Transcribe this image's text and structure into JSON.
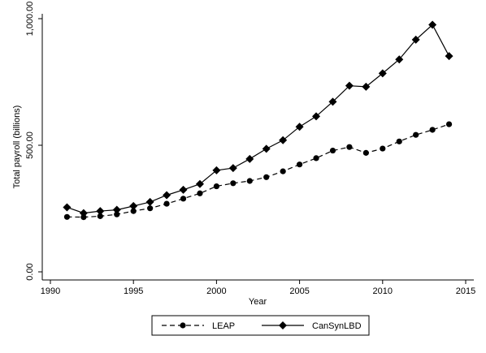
{
  "chart_data": {
    "type": "line",
    "title": "",
    "xlabel": "Year",
    "ylabel": "Total payroll (billions)",
    "xlim": [
      1990,
      2015
    ],
    "ylim": [
      0,
      1000
    ],
    "xticks": [
      {
        "value": 1990,
        "label": "1990"
      },
      {
        "value": 1995,
        "label": "1995"
      },
      {
        "value": 2000,
        "label": "2000"
      },
      {
        "value": 2005,
        "label": "2005"
      },
      {
        "value": 2010,
        "label": "2010"
      },
      {
        "value": 2015,
        "label": "2015"
      }
    ],
    "yticks": [
      {
        "value": 0,
        "label": "0.00"
      },
      {
        "value": 500,
        "label": "500.00"
      },
      {
        "value": 1000,
        "label": "1,000.00"
      }
    ],
    "grid": false,
    "legend_position": "bottom",
    "x": [
      1991,
      1992,
      1993,
      1994,
      1995,
      1996,
      1997,
      1998,
      1999,
      2000,
      2001,
      2002,
      2003,
      2004,
      2005,
      2006,
      2007,
      2008,
      2009,
      2010,
      2011,
      2012,
      2013,
      2014
    ],
    "series": [
      {
        "name": "LEAP",
        "line_style": "dashed",
        "marker": "circle",
        "color": "#000000",
        "values": [
          217,
          216,
          220,
          227,
          240,
          251,
          269,
          289,
          310,
          338,
          350,
          359,
          374,
          397,
          424,
          449,
          479,
          493,
          470,
          487,
          515,
          541,
          561,
          583
        ]
      },
      {
        "name": "CanSynLBD",
        "line_style": "solid",
        "marker": "diamond",
        "color": "#000000",
        "values": [
          255,
          232,
          240,
          245,
          260,
          276,
          303,
          324,
          347,
          401,
          410,
          446,
          486,
          520,
          573,
          614,
          672,
          735,
          731,
          784,
          839,
          917,
          976,
          852
        ]
      }
    ]
  }
}
